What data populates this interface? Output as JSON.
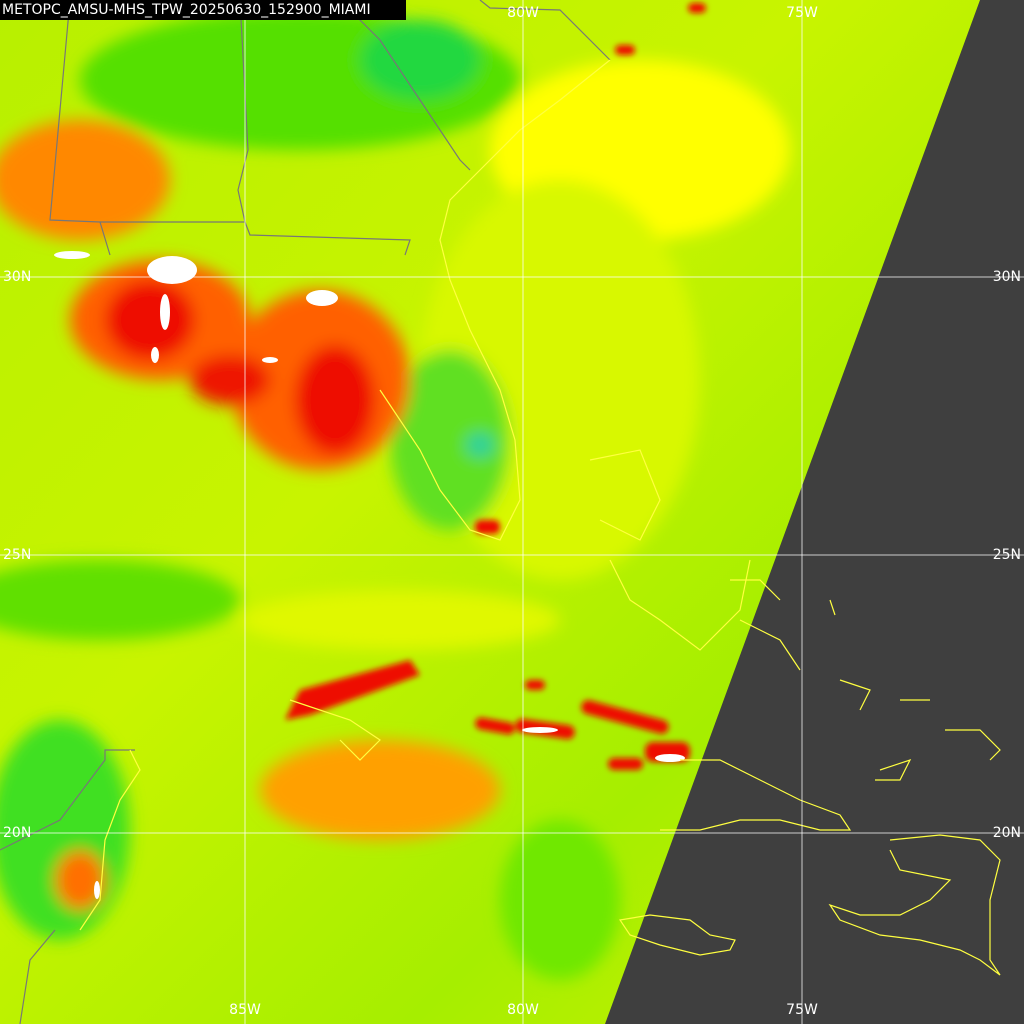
{
  "title": "METOPC_AMSU-MHS_TPW_20250630_152900_MIAMI",
  "top_labels": [
    "80W",
    "75W"
  ],
  "bottom_labels": [
    "85W",
    "80W",
    "75W"
  ],
  "left_labels": [
    "30N",
    "25N",
    "20N"
  ],
  "right_labels": [
    "30N",
    "25N",
    "20N"
  ]
}
